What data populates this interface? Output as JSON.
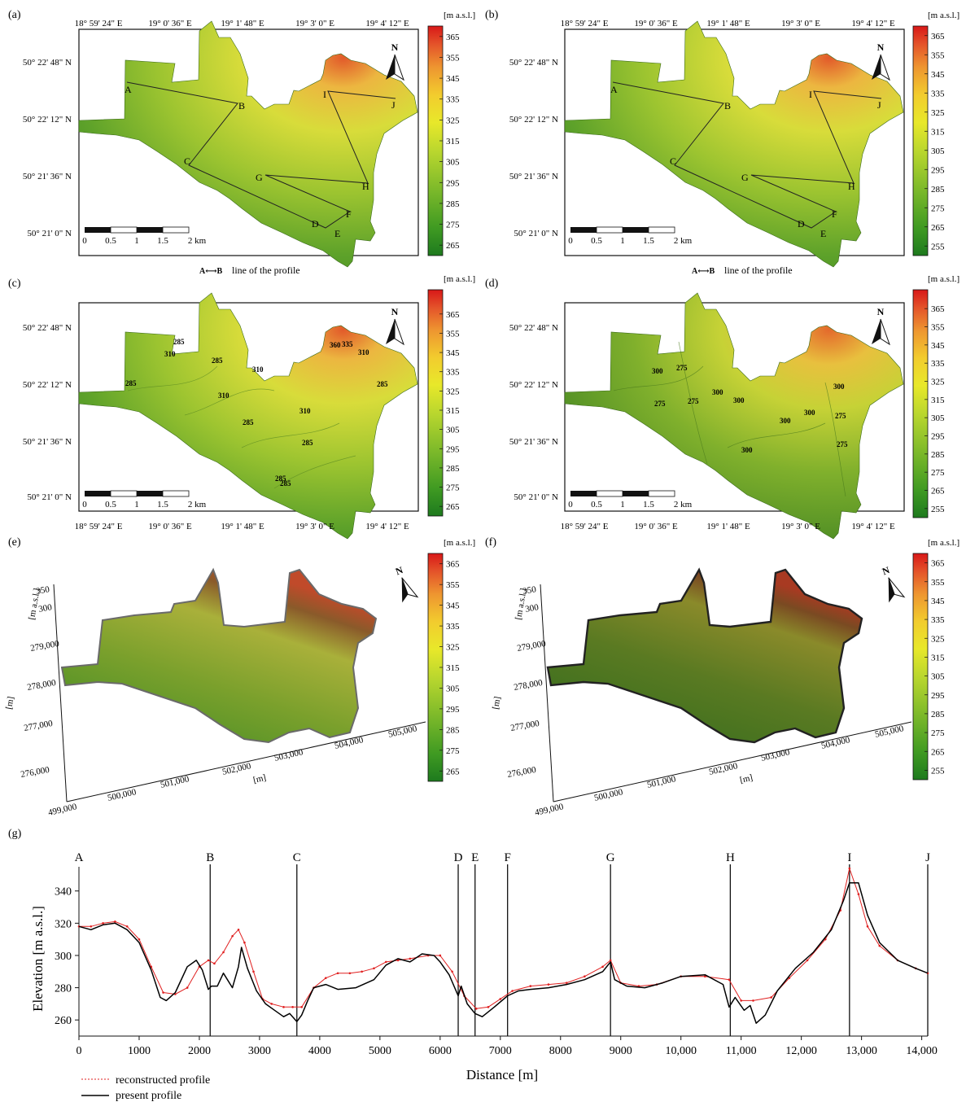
{
  "figure": {
    "panel_labels": [
      "(a)",
      "(b)",
      "(c)",
      "(d)",
      "(e)",
      "(f)",
      "(g)"
    ],
    "lon_labels": [
      "18° 59' 24\" E",
      "19° 0' 36\" E",
      "19° 1' 48\" E",
      "19° 3' 0\" E",
      "19° 4' 12\" E"
    ],
    "lat_labels": [
      "50° 22' 48\" N",
      "50° 22' 12\" N",
      "50° 21' 36\" N",
      "50° 21' 0\" N"
    ],
    "scale_ticks": [
      "0",
      "0.5",
      "1",
      "1.5",
      "2 km"
    ],
    "north_label": "N",
    "legend_unit": "[m a.s.l.]",
    "colorbar_ticks_a": [
      "365",
      "355",
      "345",
      "335",
      "325",
      "315",
      "305",
      "295",
      "285",
      "275",
      "265"
    ],
    "colorbar_ticks_b": [
      "365",
      "355",
      "345",
      "335",
      "325",
      "315",
      "305",
      "295",
      "285",
      "275",
      "265",
      "255"
    ],
    "colorbar_ticks_c": [
      "365",
      "355",
      "345",
      "335",
      "325",
      "315",
      "305",
      "295",
      "285",
      "275",
      "265"
    ],
    "colorbar_ticks_d": [
      "365",
      "355",
      "345",
      "335",
      "325",
      "315",
      "305",
      "295",
      "285",
      "275",
      "265",
      "255"
    ],
    "colorbar_ticks_e": [
      "365",
      "355",
      "345",
      "335",
      "325",
      "315",
      "305",
      "295",
      "285",
      "275",
      "265"
    ],
    "colorbar_ticks_f": [
      "365",
      "355",
      "345",
      "335",
      "325",
      "315",
      "305",
      "295",
      "285",
      "275",
      "265",
      "255"
    ],
    "profile_points": [
      "A",
      "B",
      "C",
      "D",
      "E",
      "F",
      "G",
      "H",
      "I",
      "J"
    ],
    "profile_legend_key": "A⟷B",
    "profile_legend_text": "line of the profile",
    "contours_c": [
      "310",
      "285",
      "285",
      "310",
      "285",
      "310",
      "310",
      "285",
      "285",
      "360",
      "335",
      "310",
      "285",
      "285",
      "285"
    ],
    "contours_d": [
      "300",
      "275",
      "275",
      "275",
      "300",
      "300",
      "300",
      "300",
      "300",
      "275",
      "275",
      "300"
    ],
    "axis3d_z_label": "[m a.s.l.]",
    "axis3d_z_ticks": [
      "350",
      "300"
    ],
    "axis3d_y_label": "[m]",
    "axis3d_y_ticks": [
      "279,000",
      "278,000",
      "277,000",
      "276,000"
    ],
    "axis3d_x_label": "[m]",
    "axis3d_x_ticks": [
      "499,000",
      "500,000",
      "501,000",
      "502,000",
      "503,000",
      "504,000",
      "505,000"
    ],
    "colors": {
      "ramp": [
        "#1e7a1e",
        "#3f9a22",
        "#7ab82a",
        "#b8d62e",
        "#e8e82a",
        "#f2cc2e",
        "#ee9630",
        "#e4542a",
        "#d81818"
      ],
      "reconstructed": "#e02020",
      "present": "#000000"
    }
  },
  "chart_data": {
    "type": "line",
    "panel": "(g)",
    "xlabel": "Distance [m]",
    "ylabel": "Elevation [m a.s.l.]",
    "xlim": [
      0,
      14100
    ],
    "ylim": [
      250,
      355
    ],
    "xticks": [
      0,
      1000,
      2000,
      3000,
      4000,
      5000,
      6000,
      7000,
      8000,
      9000,
      10000,
      11000,
      12000,
      13000,
      14000
    ],
    "xtick_labels": [
      "0",
      "1000",
      "2000",
      "3000",
      "4000",
      "5000",
      "6000",
      "7000",
      "8000",
      "9000",
      "10,000",
      "11,000",
      "12,000",
      "13,000",
      "14,000"
    ],
    "yticks": [
      260,
      280,
      300,
      320,
      340
    ],
    "grid": false,
    "legend_position": "bottom-left",
    "markers": [
      {
        "label": "A",
        "x": 0
      },
      {
        "label": "B",
        "x": 2180
      },
      {
        "label": "C",
        "x": 3620
      },
      {
        "label": "D",
        "x": 6300
      },
      {
        "label": "E",
        "x": 6580
      },
      {
        "label": "F",
        "x": 7120
      },
      {
        "label": "G",
        "x": 8830
      },
      {
        "label": "H",
        "x": 10820
      },
      {
        "label": "I",
        "x": 12800
      },
      {
        "label": "J",
        "x": 14100
      }
    ],
    "series": [
      {
        "name": "reconstructed profile",
        "color": "#e02020",
        "style": "dotted-marker",
        "x": [
          0,
          200,
          400,
          600,
          800,
          1000,
          1200,
          1400,
          1600,
          1800,
          2000,
          2150,
          2250,
          2400,
          2550,
          2650,
          2750,
          2900,
          3050,
          3200,
          3400,
          3550,
          3700,
          3900,
          4100,
          4300,
          4500,
          4700,
          4900,
          5100,
          5300,
          5500,
          5800,
          6000,
          6200,
          6400,
          6600,
          6800,
          7000,
          7200,
          7500,
          7800,
          8100,
          8400,
          8700,
          8830,
          9000,
          9300,
          9600,
          10000,
          10400,
          10800,
          11000,
          11200,
          11500,
          11800,
          12100,
          12400,
          12650,
          12800,
          12950,
          13100,
          13300,
          13600,
          13900,
          14100
        ],
        "y": [
          318,
          318,
          320,
          321,
          318,
          310,
          293,
          277,
          276,
          280,
          293,
          297,
          295,
          302,
          312,
          316,
          308,
          290,
          273,
          270,
          268,
          268,
          268,
          280,
          286,
          289,
          289,
          290,
          292,
          296,
          297,
          298,
          300,
          300,
          290,
          275,
          267,
          268,
          273,
          278,
          281,
          282,
          283,
          287,
          293,
          297,
          283,
          281,
          282,
          287,
          287,
          285,
          272,
          272,
          274,
          286,
          297,
          310,
          328,
          354,
          338,
          318,
          306,
          297,
          292,
          289
        ]
      },
      {
        "name": "present profile",
        "color": "#000000",
        "style": "solid",
        "x": [
          0,
          200,
          400,
          600,
          800,
          1000,
          1200,
          1350,
          1450,
          1600,
          1800,
          1950,
          2050,
          2150,
          2200,
          2300,
          2400,
          2550,
          2650,
          2700,
          2800,
          2950,
          3100,
          3250,
          3400,
          3500,
          3620,
          3700,
          3800,
          3900,
          4100,
          4300,
          4600,
          4900,
          5100,
          5300,
          5500,
          5700,
          5900,
          6000,
          6150,
          6300,
          6350,
          6450,
          6580,
          6700,
          6900,
          7120,
          7300,
          7500,
          7800,
          8100,
          8400,
          8700,
          8830,
          8900,
          9100,
          9400,
          9700,
          10000,
          10400,
          10700,
          10800,
          10900,
          11050,
          11150,
          11250,
          11400,
          11600,
          11900,
          12200,
          12500,
          12700,
          12800,
          12950,
          13100,
          13300,
          13600,
          13900,
          14100
        ],
        "y": [
          318,
          316,
          319,
          320,
          316,
          308,
          291,
          274,
          272,
          277,
          293,
          297,
          291,
          279,
          281,
          281,
          289,
          280,
          293,
          305,
          292,
          278,
          270,
          266,
          262,
          264,
          259,
          263,
          272,
          280,
          282,
          279,
          280,
          285,
          294,
          298,
          296,
          301,
          300,
          296,
          288,
          275,
          281,
          270,
          264,
          262,
          268,
          275,
          278,
          279,
          280,
          282,
          285,
          290,
          296,
          285,
          281,
          280,
          283,
          287,
          288,
          282,
          268,
          274,
          266,
          269,
          258,
          263,
          278,
          292,
          302,
          316,
          334,
          345,
          345,
          325,
          308,
          297,
          292,
          289
        ]
      }
    ]
  }
}
